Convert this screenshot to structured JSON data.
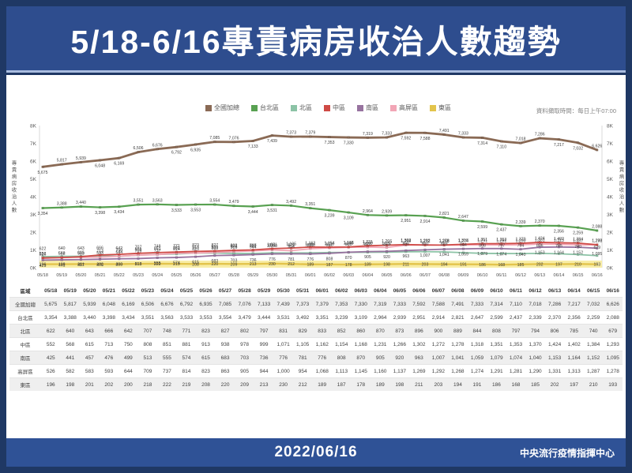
{
  "header": {
    "title": "5/18-6/16專責病房收治人數趨勢"
  },
  "note": "資料擷取時間：每日上午07:00",
  "footer": {
    "date": "2022/06/16",
    "org": "中央流行疫情指揮中心"
  },
  "table": {
    "corner_label": "區域"
  },
  "chart_data": {
    "type": "line",
    "title": "5/18-6/16專責病房收治人數趨勢",
    "ylabel_left": "專責病房收治人數",
    "ylabel_right": "專責病房收治人數",
    "ylim": [
      0,
      8000
    ],
    "yticks": [
      "0K",
      "1K",
      "2K",
      "3K",
      "4K",
      "5K",
      "6K",
      "7K",
      "8K"
    ],
    "grid": false,
    "legend_position": "top",
    "data_labels": true,
    "categories": [
      "05/18",
      "05/19",
      "05/20",
      "05/21",
      "05/22",
      "05/23",
      "05/24",
      "05/25",
      "05/26",
      "05/27",
      "05/28",
      "05/29",
      "05/30",
      "05/31",
      "06/01",
      "06/02",
      "06/03",
      "06/04",
      "06/05",
      "06/06",
      "06/07",
      "06/08",
      "06/09",
      "06/10",
      "06/11",
      "06/12",
      "06/13",
      "06/14",
      "06/15",
      "06/16"
    ],
    "series": [
      {
        "name": "全國加總",
        "color": "#8a6a55",
        "values": [
          5675,
          5817,
          5939,
          6048,
          6169,
          6506,
          6676,
          6792,
          6935,
          7085,
          7076,
          7133,
          7439,
          7373,
          7379,
          7353,
          7330,
          7319,
          7333,
          7592,
          7588,
          7491,
          7333,
          7314,
          7110,
          7018,
          7286,
          7217,
          7032,
          6626
        ]
      },
      {
        "name": "台北區",
        "color": "#58a151",
        "values": [
          3354,
          3388,
          3440,
          3398,
          3434,
          3551,
          3563,
          3533,
          3553,
          3554,
          3479,
          3444,
          3531,
          3492,
          3351,
          3239,
          3109,
          2964,
          2939,
          2951,
          2914,
          2821,
          2647,
          2599,
          2437,
          2339,
          2370,
          2356,
          2259,
          2088
        ]
      },
      {
        "name": "北區",
        "color": "#8cc3a6",
        "values": [
          622,
          640,
          643,
          666,
          642,
          707,
          748,
          771,
          823,
          827,
          802,
          797,
          831,
          829,
          833,
          852,
          860,
          870,
          873,
          896,
          900,
          889,
          844,
          808,
          797,
          794,
          806,
          785,
          740,
          679
        ]
      },
      {
        "name": "中區",
        "color": "#cf4a45",
        "values": [
          552,
          568,
          615,
          713,
          750,
          808,
          851,
          881,
          913,
          938,
          978,
          999,
          1071,
          1105,
          1162,
          1154,
          1168,
          1231,
          1266,
          1302,
          1272,
          1278,
          1318,
          1351,
          1353,
          1370,
          1424,
          1402,
          1384,
          1293
        ]
      },
      {
        "name": "南區",
        "color": "#97739f",
        "values": [
          425,
          441,
          457,
          476,
          499,
          513,
          555,
          574,
          615,
          683,
          703,
          736,
          776,
          781,
          776,
          808,
          870,
          905,
          920,
          963,
          1007,
          1041,
          1059,
          1079,
          1074,
          1040,
          1153,
          1164,
          1152,
          1095
        ]
      },
      {
        "name": "高屏區",
        "color": "#f2a6b6",
        "values": [
          526,
          582,
          583,
          593,
          644,
          709,
          737,
          814,
          823,
          863,
          905,
          944,
          1000,
          954,
          1068,
          1113,
          1145,
          1160,
          1137,
          1269,
          1292,
          1268,
          1274,
          1291,
          1281,
          1290,
          1331,
          1313,
          1287,
          1278
        ]
      },
      {
        "name": "東區",
        "color": "#e3c44c",
        "values": [
          196,
          198,
          201,
          202,
          200,
          218,
          222,
          219,
          208,
          220,
          209,
          213,
          230,
          212,
          189,
          187,
          178,
          189,
          198,
          211,
          203,
          194,
          191,
          186,
          168,
          185,
          202,
          197,
          210,
          193
        ]
      }
    ]
  }
}
